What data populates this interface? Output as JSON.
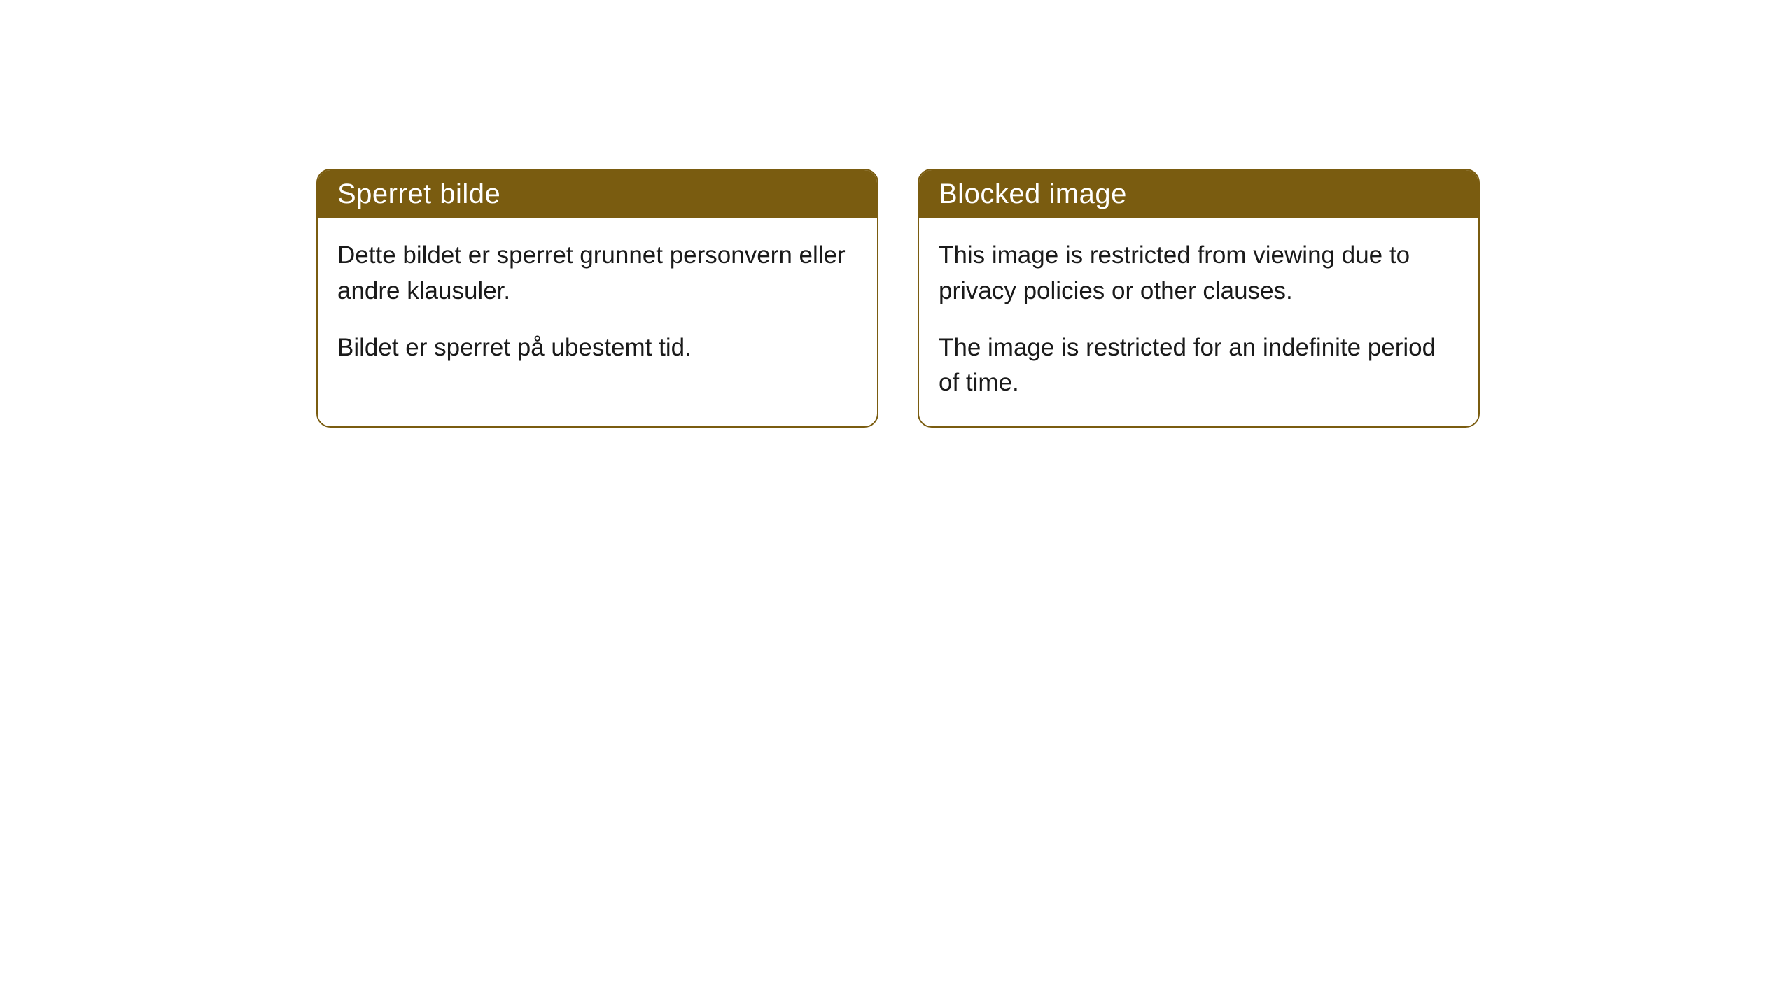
{
  "cards": [
    {
      "title": "Sperret bilde",
      "paragraph1": "Dette bildet er sperret grunnet personvern eller andre klausuler.",
      "paragraph2": "Bildet er sperret på ubestemt tid."
    },
    {
      "title": "Blocked image",
      "paragraph1": "This image is restricted from viewing due to privacy policies or other clauses.",
      "paragraph2": "The image is restricted for an indefinite period of time."
    }
  ],
  "styling": {
    "header_background": "#7a5c10",
    "header_text_color": "#ffffff",
    "border_color": "#7a5c10",
    "body_background": "#ffffff",
    "body_text_color": "#1a1a1a",
    "border_radius": 20,
    "title_fontsize": 40,
    "body_fontsize": 35
  }
}
